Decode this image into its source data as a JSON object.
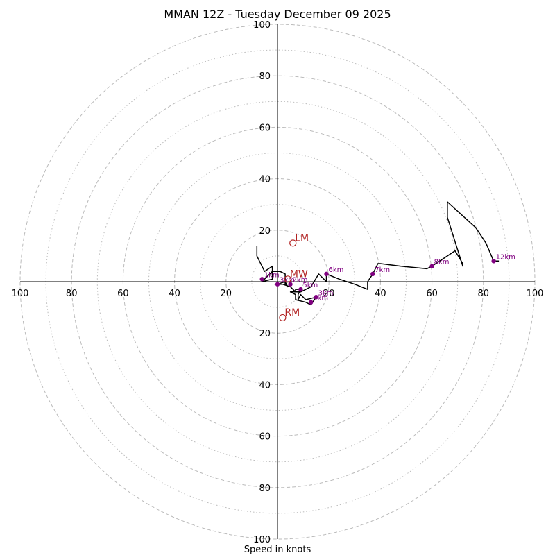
{
  "chart_data": {
    "type": "hodograph",
    "title": "MMAN 12Z - Tuesday December 09 2025",
    "xlabel": "Speed in knots",
    "rmax": 100,
    "ring_major": [
      20,
      40,
      60,
      80,
      100
    ],
    "ring_minor": [
      10,
      30,
      50,
      70,
      90
    ],
    "tick_labels": [
      "20",
      "40",
      "60",
      "80",
      "100"
    ],
    "colors": {
      "trace": "#000000",
      "height_marker": "#800080",
      "motion_marker": "#b22222",
      "ring": "#bbbbbb"
    },
    "trace": [
      [
        -8,
        14
      ],
      [
        -8,
        10
      ],
      [
        -5,
        4
      ],
      [
        -2,
        6
      ],
      [
        -2,
        1
      ],
      [
        -6,
        0
      ],
      [
        -2,
        4
      ],
      [
        1,
        4
      ],
      [
        3,
        3
      ],
      [
        3,
        -1
      ],
      [
        4,
        -2
      ],
      [
        3,
        0
      ],
      [
        0,
        -1
      ],
      [
        -1,
        -1
      ],
      [
        2,
        -1
      ],
      [
        5,
        -2
      ],
      [
        7,
        -4
      ],
      [
        7,
        -3
      ],
      [
        9,
        -3
      ],
      [
        8,
        -5
      ],
      [
        8,
        -7
      ],
      [
        9,
        -5
      ],
      [
        11,
        -7
      ],
      [
        15,
        -6
      ],
      [
        13,
        -9
      ],
      [
        11,
        -8
      ],
      [
        7,
        -7
      ],
      [
        7,
        -5
      ],
      [
        5,
        -4
      ],
      [
        9,
        -4
      ],
      [
        13,
        -2
      ],
      [
        16,
        3
      ],
      [
        19,
        0
      ],
      [
        19,
        3
      ],
      [
        24,
        1
      ],
      [
        30,
        -1
      ],
      [
        35,
        -3
      ],
      [
        35,
        0
      ],
      [
        37,
        3
      ],
      [
        39,
        7
      ],
      [
        40,
        7
      ],
      [
        48,
        6
      ],
      [
        58,
        5
      ],
      [
        60,
        6
      ],
      [
        69,
        12
      ],
      [
        72,
        7
      ],
      [
        72,
        6
      ],
      [
        66,
        25
      ],
      [
        66,
        31
      ],
      [
        77,
        21
      ],
      [
        81,
        15
      ],
      [
        84,
        8
      ],
      [
        86,
        8
      ]
    ],
    "height_points": [
      {
        "label": "1km",
        "u": -6,
        "v": 1
      },
      {
        "label": "3km",
        "u": 0,
        "v": -1
      },
      {
        "label": "2km",
        "u": 5,
        "v": -1
      },
      {
        "label": "5km",
        "u": 9,
        "v": -3
      },
      {
        "label": "3km",
        "u": 15,
        "v": -6
      },
      {
        "label": "4km",
        "u": 13,
        "v": -8
      },
      {
        "label": "6km",
        "u": 19,
        "v": 3
      },
      {
        "label": "7km",
        "u": 37,
        "v": 3
      },
      {
        "label": "8km",
        "u": 60,
        "v": 6
      },
      {
        "label": "12km",
        "u": 84,
        "v": 8
      }
    ],
    "motion_points": [
      {
        "label": "LM",
        "u": 6,
        "v": 15
      },
      {
        "label": "MW",
        "u": 4,
        "v": 1
      },
      {
        "label": "RM",
        "u": 2,
        "v": -14
      }
    ]
  }
}
